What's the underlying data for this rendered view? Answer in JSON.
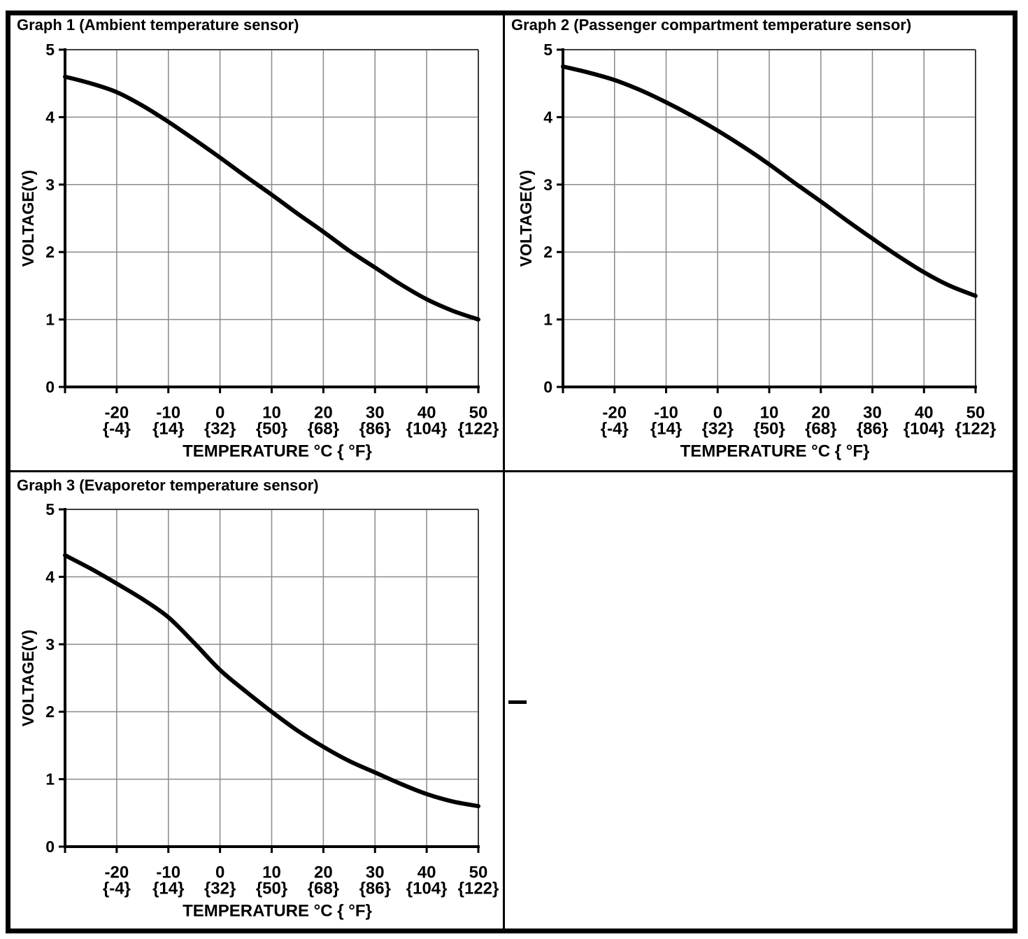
{
  "page": {
    "background": "#ffffff",
    "border_color": "#000000"
  },
  "colors": {
    "curve": "#000000",
    "gridline": "#8a8a8a",
    "frame": "#3d3d3d",
    "axis": "#000000",
    "text": "#000000"
  },
  "chart_data": [
    {
      "id": "graph-1",
      "type": "line",
      "title": "Graph 1 (Ambient temperature sensor)",
      "xlabel": "TEMPERATURE °C { °F}",
      "ylabel": "VOLTAGE(V)",
      "xlim": [
        -30,
        50
      ],
      "ylim": [
        0,
        5
      ],
      "grid": "on",
      "x_gridline_step": 10,
      "y_gridline_step": 1,
      "legend": "none",
      "x": [
        -30,
        -25,
        -20,
        -15,
        -10,
        -5,
        0,
        5,
        10,
        15,
        20,
        25,
        30,
        35,
        40,
        45,
        50
      ],
      "voltage": [
        4.6,
        4.5,
        4.37,
        4.17,
        3.93,
        3.67,
        3.4,
        3.12,
        2.85,
        2.57,
        2.3,
        2.02,
        1.77,
        1.52,
        1.3,
        1.13,
        1.0
      ],
      "x_tick_values": [
        -20,
        -10,
        0,
        10,
        20,
        30,
        40,
        50
      ],
      "x_ticks_celsius": [
        "-20",
        "-10",
        "0",
        "10",
        "20",
        "30",
        "40",
        "50"
      ],
      "x_ticks_fahrenheit": [
        "{-4}",
        "{14}",
        "{32}",
        "{50}",
        "{68}",
        "{86}",
        "{104}",
        "{122}"
      ],
      "y_ticks": [
        "0",
        "1",
        "2",
        "3",
        "4",
        "5"
      ]
    },
    {
      "id": "graph-2",
      "type": "line",
      "title": "Graph 2 (Passenger compartment temperature sensor)",
      "xlabel": "TEMPERATURE °C { °F}",
      "ylabel": "VOLTAGE(V)",
      "xlim": [
        -30,
        50
      ],
      "ylim": [
        0,
        5
      ],
      "grid": "on",
      "x_gridline_step": 10,
      "y_gridline_step": 1,
      "legend": "none",
      "x": [
        -30,
        -25,
        -20,
        -15,
        -10,
        -5,
        0,
        5,
        10,
        15,
        20,
        25,
        30,
        35,
        40,
        45,
        50
      ],
      "voltage": [
        4.75,
        4.66,
        4.55,
        4.4,
        4.22,
        4.02,
        3.8,
        3.56,
        3.3,
        3.02,
        2.75,
        2.47,
        2.2,
        1.94,
        1.7,
        1.5,
        1.35
      ],
      "x_tick_values": [
        -20,
        -10,
        0,
        10,
        20,
        30,
        40,
        50
      ],
      "x_ticks_celsius": [
        "-20",
        "-10",
        "0",
        "10",
        "20",
        "30",
        "40",
        "50"
      ],
      "x_ticks_fahrenheit": [
        "{-4}",
        "{14}",
        "{32}",
        "{50}",
        "{68}",
        "{86}",
        "{104}",
        "{122}"
      ],
      "y_ticks": [
        "0",
        "1",
        "2",
        "3",
        "4",
        "5"
      ]
    },
    {
      "id": "graph-3",
      "type": "line",
      "title": "Graph 3 (Evaporetor temperature sensor)",
      "xlabel": "TEMPERATURE °C { °F}",
      "ylabel": "VOLTAGE(V)",
      "xlim": [
        -30,
        50
      ],
      "ylim": [
        0,
        5
      ],
      "grid": "on",
      "x_gridline_step": 10,
      "y_gridline_step": 1,
      "legend": "none",
      "x": [
        -30,
        -25,
        -20,
        -15,
        -10,
        -5,
        0,
        5,
        10,
        15,
        20,
        25,
        30,
        35,
        40,
        45,
        50
      ],
      "voltage": [
        4.32,
        4.12,
        3.9,
        3.67,
        3.4,
        3.02,
        2.62,
        2.3,
        2.0,
        1.72,
        1.48,
        1.27,
        1.1,
        0.93,
        0.78,
        0.67,
        0.6
      ],
      "x_tick_values": [
        -20,
        -10,
        0,
        10,
        20,
        30,
        40,
        50
      ],
      "x_ticks_celsius": [
        "-20",
        "-10",
        "0",
        "10",
        "20",
        "30",
        "40",
        "50"
      ],
      "x_ticks_fahrenheit": [
        "{-4}",
        "{14}",
        "{32}",
        "{50}",
        "{68}",
        "{86}",
        "{104}",
        "{122}"
      ],
      "y_ticks": [
        "0",
        "1",
        "2",
        "3",
        "4",
        "5"
      ]
    }
  ]
}
